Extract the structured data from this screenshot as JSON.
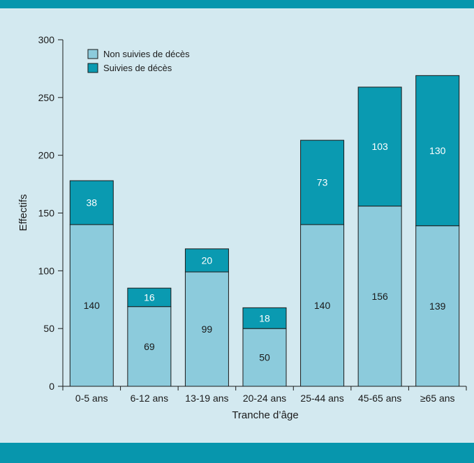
{
  "chart_data": {
    "type": "bar",
    "stacked": true,
    "categories": [
      "0-5 ans",
      "6-12 ans",
      "13-19 ans",
      "20-24 ans",
      "25-44 ans",
      "45-65 ans",
      "≥65 ans"
    ],
    "series": [
      {
        "name": "Non suivies de décès",
        "values": [
          140,
          69,
          99,
          50,
          140,
          156,
          139
        ],
        "color": "#8ccbdc",
        "label_color": "#1a1a1a"
      },
      {
        "name": "Suivies de décès",
        "values": [
          38,
          16,
          20,
          18,
          73,
          103,
          130
        ],
        "color": "#0a9ab1",
        "label_color": "#ffffff"
      }
    ],
    "xlabel": "Tranche d’âge",
    "ylabel": "Effectifs",
    "ylim": [
      0,
      300
    ],
    "yticks": [
      0,
      50,
      100,
      150,
      200,
      250,
      300
    ],
    "legend_position": "top-left",
    "grid": false
  }
}
